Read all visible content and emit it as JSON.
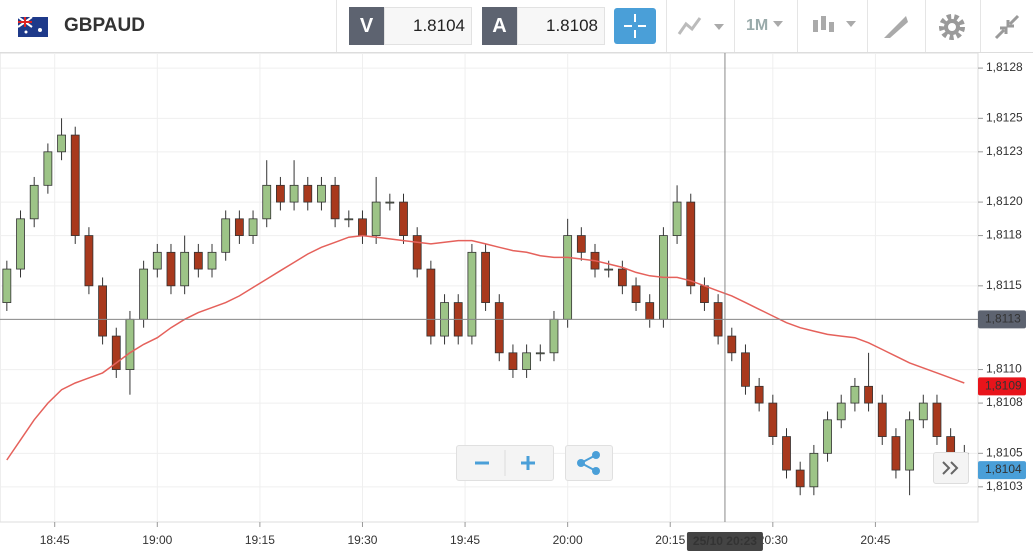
{
  "header": {
    "symbol": "GBPAUD",
    "bid_label": "V",
    "bid": "1.8104",
    "ask_label": "A",
    "ask": "1.8108",
    "timeframe": "1M"
  },
  "chart_data": {
    "type": "candlestick",
    "x": [
      "18:38",
      "18:40",
      "18:42",
      "18:44",
      "18:46",
      "18:48",
      "18:50",
      "18:52",
      "18:54",
      "18:56",
      "18:58",
      "19:00",
      "19:02",
      "19:04",
      "19:06",
      "19:08",
      "19:10",
      "19:12",
      "19:14",
      "19:16",
      "19:18",
      "19:20",
      "19:22",
      "19:24",
      "19:26",
      "19:28",
      "19:30",
      "19:32",
      "19:34",
      "19:36",
      "19:38",
      "19:40",
      "19:42",
      "19:44",
      "19:46",
      "19:48",
      "19:50",
      "19:52",
      "19:54",
      "19:56",
      "19:58",
      "20:00",
      "20:02",
      "20:04",
      "20:06",
      "20:08",
      "20:10",
      "20:12",
      "20:14",
      "20:16",
      "20:18",
      "20:20",
      "20:22",
      "20:24",
      "20:26",
      "20:28",
      "20:30",
      "20:32",
      "20:34",
      "20:36",
      "20:38",
      "20:40",
      "20:42",
      "20:44",
      "20:46",
      "20:48",
      "20:50",
      "20:52",
      "20:54",
      "20:56",
      "20:58"
    ],
    "open": [
      1.8114,
      1.8116,
      1.8119,
      1.8121,
      1.8123,
      1.8124,
      1.8118,
      1.8115,
      1.8112,
      1.811,
      1.8113,
      1.8116,
      1.8117,
      1.8115,
      1.8117,
      1.8116,
      1.8117,
      1.8119,
      1.8118,
      1.8119,
      1.8121,
      1.812,
      1.8121,
      1.812,
      1.8121,
      1.8119,
      1.8119,
      1.8118,
      1.812,
      1.812,
      1.8118,
      1.8116,
      1.8112,
      1.8114,
      1.8112,
      1.8117,
      1.8114,
      1.8111,
      1.811,
      1.8111,
      1.8111,
      1.8113,
      1.8118,
      1.8117,
      1.8116,
      1.8116,
      1.8115,
      1.8114,
      1.8113,
      1.8118,
      1.812,
      1.8115,
      1.8114,
      1.8112,
      1.8111,
      1.8109,
      1.8108,
      1.8106,
      1.8104,
      1.8103,
      1.8105,
      1.8107,
      1.8108,
      1.8109,
      1.8108,
      1.8106,
      1.8104,
      1.8107,
      1.8108,
      1.8106,
      1.8105
    ],
    "high": [
      1.81165,
      1.81195,
      1.81215,
      1.81235,
      1.8125,
      1.81245,
      1.81185,
      1.81155,
      1.81125,
      1.81135,
      1.81165,
      1.81175,
      1.81175,
      1.8118,
      1.81175,
      1.81175,
      1.81195,
      1.81195,
      1.81195,
      1.81225,
      1.81215,
      1.81225,
      1.81215,
      1.81215,
      1.81215,
      1.81195,
      1.81195,
      1.81215,
      1.81205,
      1.81205,
      1.81185,
      1.81165,
      1.81145,
      1.81145,
      1.81175,
      1.81175,
      1.81145,
      1.81115,
      1.81115,
      1.81115,
      1.81135,
      1.8119,
      1.81185,
      1.81175,
      1.81165,
      1.81165,
      1.81155,
      1.81145,
      1.81185,
      1.8121,
      1.81205,
      1.81155,
      1.81145,
      1.81125,
      1.81115,
      1.81095,
      1.81085,
      1.81065,
      1.81045,
      1.81055,
      1.81075,
      1.81085,
      1.81095,
      1.8111,
      1.81085,
      1.81065,
      1.81075,
      1.81085,
      1.81085,
      1.81065,
      1.81055
    ],
    "low": [
      1.81135,
      1.81155,
      1.81185,
      1.81205,
      1.81225,
      1.81175,
      1.81145,
      1.81115,
      1.81095,
      1.81085,
      1.81125,
      1.81155,
      1.81145,
      1.81145,
      1.81155,
      1.81155,
      1.81165,
      1.81175,
      1.81175,
      1.81185,
      1.81195,
      1.81195,
      1.81195,
      1.81195,
      1.81185,
      1.81185,
      1.81175,
      1.81175,
      1.81195,
      1.81175,
      1.81155,
      1.81115,
      1.81115,
      1.81115,
      1.81115,
      1.81135,
      1.81105,
      1.81095,
      1.81095,
      1.81105,
      1.81105,
      1.81125,
      1.81165,
      1.81155,
      1.81155,
      1.81145,
      1.81135,
      1.81125,
      1.81125,
      1.81175,
      1.81145,
      1.81135,
      1.81115,
      1.81105,
      1.81085,
      1.81075,
      1.81055,
      1.81035,
      1.81025,
      1.81025,
      1.81045,
      1.81065,
      1.81075,
      1.81075,
      1.81055,
      1.81035,
      1.81025,
      1.81065,
      1.81055,
      1.81045,
      1.81035
    ],
    "close": [
      1.8116,
      1.8119,
      1.8121,
      1.8123,
      1.8124,
      1.8118,
      1.8115,
      1.8112,
      1.811,
      1.8113,
      1.8116,
      1.8117,
      1.8115,
      1.8117,
      1.8116,
      1.8117,
      1.8119,
      1.8118,
      1.8119,
      1.8121,
      1.812,
      1.8121,
      1.812,
      1.8121,
      1.8119,
      1.8119,
      1.8118,
      1.812,
      1.812,
      1.8118,
      1.8116,
      1.8112,
      1.8114,
      1.8112,
      1.8117,
      1.8114,
      1.8111,
      1.811,
      1.8111,
      1.8111,
      1.8113,
      1.8118,
      1.8117,
      1.8116,
      1.8116,
      1.8115,
      1.8114,
      1.8113,
      1.8118,
      1.812,
      1.8115,
      1.8114,
      1.8112,
      1.8111,
      1.8109,
      1.8108,
      1.8106,
      1.8104,
      1.8103,
      1.8105,
      1.8107,
      1.8108,
      1.8109,
      1.8108,
      1.8106,
      1.8104,
      1.8107,
      1.8108,
      1.8106,
      1.8105,
      1.8104
    ],
    "up_color": "#9dc487",
    "down_color": "#a8391d",
    "moving_average": {
      "color": "#e5615b",
      "values": [
        1.81046,
        1.81058,
        1.8107,
        1.8108,
        1.81088,
        1.81092,
        1.81095,
        1.81098,
        1.81104,
        1.8111,
        1.81115,
        1.81119,
        1.81125,
        1.8113,
        1.81134,
        1.81137,
        1.8114,
        1.81144,
        1.81149,
        1.81154,
        1.81159,
        1.81164,
        1.81169,
        1.81173,
        1.81176,
        1.81179,
        1.8118,
        1.81179,
        1.81178,
        1.81177,
        1.81176,
        1.81175,
        1.81176,
        1.81177,
        1.81177,
        1.81175,
        1.81173,
        1.81171,
        1.8117,
        1.81168,
        1.81167,
        1.81167,
        1.81166,
        1.81165,
        1.81163,
        1.81161,
        1.81158,
        1.81156,
        1.81155,
        1.81155,
        1.81153,
        1.8115,
        1.81147,
        1.81144,
        1.8114,
        1.81136,
        1.81132,
        1.81128,
        1.81125,
        1.81123,
        1.81121,
        1.8112,
        1.81119,
        1.81116,
        1.81112,
        1.81108,
        1.81104,
        1.81101,
        1.81098,
        1.81095,
        1.81092
      ]
    },
    "xlim": [
      "18:37",
      "21:00"
    ],
    "xticks": [
      "18:45",
      "19:00",
      "19:15",
      "19:30",
      "19:45",
      "20:00",
      "20:15",
      "20:30",
      "20:45"
    ],
    "ylim": [
      1.81009,
      1.81289
    ],
    "yticks": [
      {
        "value": 1.8128,
        "label": "1,8128"
      },
      {
        "value": 1.8125,
        "label": "1,8125"
      },
      {
        "value": 1.8123,
        "label": "1,8123"
      },
      {
        "value": 1.812,
        "label": "1,8120"
      },
      {
        "value": 1.8118,
        "label": "1,8118"
      },
      {
        "value": 1.8115,
        "label": "1,8115"
      },
      {
        "value": 1.8113,
        "label": "1,8113"
      },
      {
        "value": 1.811,
        "label": "1,8110"
      },
      {
        "value": 1.8108,
        "label": "1,8108"
      },
      {
        "value": 1.8105,
        "label": "1,8105"
      },
      {
        "value": 1.8103,
        "label": "1,8103"
      }
    ],
    "grid": true,
    "price_tags": [
      {
        "value": 1.8109,
        "label": "1,8109",
        "color": "#e8141b"
      },
      {
        "value": 1.8104,
        "label": "1,8104",
        "color": "#4a9fd8"
      }
    ],
    "crosshair": {
      "x": "20:23",
      "x_label": "25/10 20:23",
      "y": {
        "value": 1.8113,
        "label": "1,8113"
      }
    }
  }
}
